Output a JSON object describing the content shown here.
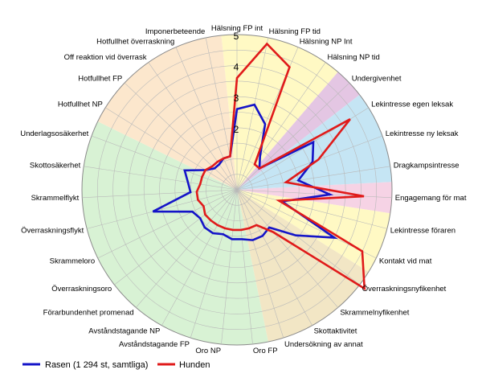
{
  "chart_data": {
    "type": "radar",
    "title": "",
    "rmax": 5,
    "rticks": [
      1,
      2,
      3,
      4,
      5
    ],
    "rtick_labels": [
      "",
      "2",
      "3",
      "4",
      "5"
    ],
    "categories": [
      "Hälsning FP int",
      "Hälsning FP tid",
      "Hälsning NP Int",
      "Hälsning NP tid",
      "Undergivenhet",
      "Lekintresse egen leksak",
      "Lekintresse ny leksak",
      "Dragkampsintresse",
      "Engagemang för mat",
      "Lekintresse föraren",
      "Kontakt vid mat",
      "Överraskningsnyfikenhet",
      "Skrammelnyfikenhet",
      "Skottaktivitet",
      "Undersökning av annat",
      "Oro FP",
      "Oro NP",
      "Avståndstagande FP",
      "Avståndstagande NP",
      "Förarbundenhet promenad",
      "Överraskningsoro",
      "Skrammeloro",
      "Överraskningsflykt",
      "Skrammelflykt",
      "Skottosäkerhet",
      "Underlagsosäkerhet",
      "Hotfullhet NP",
      "Hotfullhet FP",
      "Off reaktion vid överrask",
      "Hotfullhet överraskning",
      "Imponerbeteende"
    ],
    "sectors": [
      {
        "start": 0,
        "end": 4,
        "color": "#fff9c4"
      },
      {
        "start": 4,
        "end": 5,
        "color": "#e4c6e3"
      },
      {
        "start": 5,
        "end": 8,
        "color": "#c5e5f4"
      },
      {
        "start": 8,
        "end": 9,
        "color": "#f6d3e5"
      },
      {
        "start": 9,
        "end": 11,
        "color": "#fff9c4"
      },
      {
        "start": 11,
        "end": 15,
        "color": "#f2e6c5"
      },
      {
        "start": 15,
        "end": 26,
        "color": "#d8f2d4"
      },
      {
        "start": 26,
        "end": 31,
        "color": "#fce7cd"
      }
    ],
    "series": [
      {
        "name": "Rasen (1 294 st, samtliga)",
        "color": "#1414c8",
        "values": [
          2.6,
          2.8,
          2.3,
          1.3,
          1.0,
          2.9,
          2.6,
          2.0,
          3.0,
          1.5,
          3.5,
          2.4,
          1.6,
          1.7,
          1.7,
          1.6,
          1.6,
          1.5,
          1.6,
          1.6,
          1.5,
          1.6,
          2.8,
          1.5,
          1.6,
          1.8,
          1.2,
          1.0,
          1.0,
          1.1,
          1.1
        ]
      },
      {
        "name": "Hunden",
        "color": "#e01a1a",
        "values": [
          3.6,
          4.8,
          4.3,
          1.0,
          1.0,
          4.3,
          2.8,
          1.6,
          4.1,
          1.4,
          4.5,
          5.2,
          1.8,
          1.3,
          1.3,
          1.3,
          1.3,
          1.3,
          1.3,
          1.3,
          1.3,
          1.2,
          1.3,
          1.3,
          1.2,
          1.2,
          1.2,
          1.1,
          1.1,
          1.1,
          1.1
        ]
      }
    ],
    "grid": true,
    "legend": "bottom-left"
  }
}
